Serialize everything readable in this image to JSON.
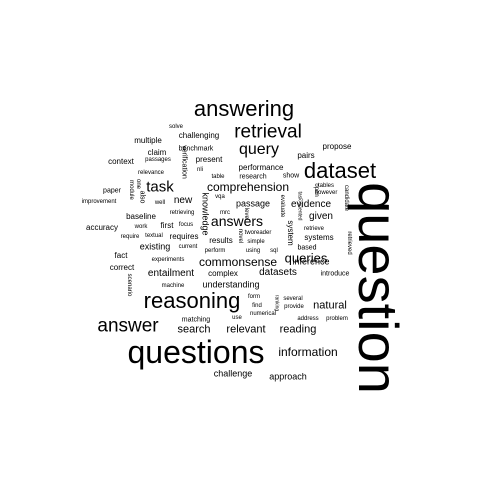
{
  "word_cloud": {
    "ink_color": "#000000",
    "background": "#ffffff",
    "words": [
      "question",
      "questions",
      "answering",
      "reasoning",
      "dataset",
      "answer",
      "retrieval",
      "query",
      "task",
      "answers",
      "information",
      "queries",
      "commonsense",
      "comprehension",
      "relevant",
      "reading",
      "natural",
      "search",
      "entailment",
      "evidence",
      "datasets",
      "given",
      "passage",
      "understanding",
      "inference",
      "challenge",
      "approach",
      "new",
      "systems",
      "existing",
      "results",
      "complex",
      "first",
      "requires",
      "accuracy",
      "baseline",
      "correct",
      "fact",
      "knowledge",
      "system",
      "context",
      "paper",
      "multiple",
      "claim",
      "challenging",
      "present",
      "performance",
      "research",
      "show",
      "pairs",
      "propose",
      "benchmark",
      "solve",
      "verification",
      "nli",
      "table",
      "improvement",
      "work",
      "well",
      "relevance",
      "passages",
      "textual",
      "require",
      "retrieving",
      "mrc",
      "vqa",
      "focus",
      "experiments",
      "current",
      "perform",
      "simple",
      "using",
      "sql",
      "based",
      "introduce",
      "retrieve",
      "evaluate",
      "novel",
      "form",
      "find",
      "provide",
      "several",
      "ranking",
      "tworeader",
      "use",
      "numerical",
      "address",
      "problem",
      "matching",
      "machine",
      "module",
      "one",
      "also",
      "tables",
      "however",
      "candidate",
      "retrieved",
      "scenario",
      "open",
      "level",
      "task-oriented"
    ]
  }
}
